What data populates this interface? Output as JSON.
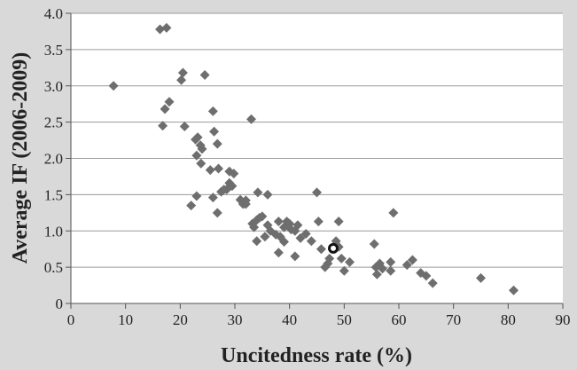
{
  "chart_data": {
    "type": "scatter",
    "title": "",
    "xlabel": "Uncitedness rate (%)",
    "ylabel": "Average IF (2006-2009)",
    "xlim": [
      0,
      90
    ],
    "ylim": [
      0,
      4.0
    ],
    "x_ticks": [
      "0",
      "10",
      "20",
      "30",
      "40",
      "50",
      "60",
      "70",
      "80",
      "90"
    ],
    "y_ticks": [
      "0",
      "0.5",
      "1.0",
      "1.5",
      "2.0",
      "2.5",
      "3.0",
      "3.5",
      "4.0"
    ],
    "grid": "horizontal",
    "series": [
      {
        "marker": "diamond",
        "color": "#6e6e6e",
        "points": [
          [
            7.8,
            3.0
          ],
          [
            16.3,
            3.78
          ],
          [
            17.5,
            3.8
          ],
          [
            17.2,
            2.68
          ],
          [
            16.8,
            2.45
          ],
          [
            18.0,
            2.78
          ],
          [
            20.5,
            3.18
          ],
          [
            20.2,
            3.08
          ],
          [
            20.8,
            2.44
          ],
          [
            24.5,
            3.15
          ],
          [
            26.0,
            2.65
          ],
          [
            22.8,
            2.26
          ],
          [
            23.2,
            2.29
          ],
          [
            23.7,
            2.18
          ],
          [
            24.0,
            2.13
          ],
          [
            23.0,
            2.04
          ],
          [
            23.8,
            1.93
          ],
          [
            26.2,
            2.37
          ],
          [
            26.8,
            2.2
          ],
          [
            25.5,
            1.84
          ],
          [
            27.0,
            1.86
          ],
          [
            29.0,
            1.82
          ],
          [
            29.8,
            1.79
          ],
          [
            22.0,
            1.35
          ],
          [
            23.0,
            1.48
          ],
          [
            26.0,
            1.46
          ],
          [
            27.5,
            1.54
          ],
          [
            26.8,
            1.25
          ],
          [
            28.5,
            1.57
          ],
          [
            29.0,
            1.66
          ],
          [
            29.5,
            1.62
          ],
          [
            28.0,
            1.57
          ],
          [
            31.0,
            1.43
          ],
          [
            31.5,
            1.37
          ],
          [
            32.0,
            1.37
          ],
          [
            32.0,
            1.42
          ],
          [
            33.0,
            2.54
          ],
          [
            33.2,
            1.1
          ],
          [
            34.0,
            1.15
          ],
          [
            34.5,
            1.18
          ],
          [
            35.0,
            1.2
          ],
          [
            34.2,
            1.53
          ],
          [
            36.0,
            1.5
          ],
          [
            34.0,
            0.86
          ],
          [
            35.5,
            0.92
          ],
          [
            36.5,
            1.0
          ],
          [
            33.5,
            1.05
          ],
          [
            36.0,
            1.08
          ],
          [
            37.5,
            0.95
          ],
          [
            38.0,
            1.13
          ],
          [
            38.3,
            0.92
          ],
          [
            39.0,
            1.05
          ],
          [
            39.5,
            1.13
          ],
          [
            40.0,
            1.1
          ],
          [
            38.0,
            0.7
          ],
          [
            39.0,
            0.85
          ],
          [
            40.3,
            1.02
          ],
          [
            41.0,
            1.0
          ],
          [
            41.5,
            1.08
          ],
          [
            42.0,
            0.9
          ],
          [
            41.0,
            0.65
          ],
          [
            43.0,
            0.96
          ],
          [
            44.0,
            0.86
          ],
          [
            45.0,
            1.53
          ],
          [
            45.3,
            1.13
          ],
          [
            45.8,
            0.75
          ],
          [
            46.5,
            0.5
          ],
          [
            47.0,
            0.55
          ],
          [
            47.3,
            0.62
          ],
          [
            48.5,
            0.86
          ],
          [
            49.0,
            0.78
          ],
          [
            49.0,
            1.13
          ],
          [
            49.5,
            0.62
          ],
          [
            50.0,
            0.45
          ],
          [
            51.0,
            0.57
          ],
          [
            55.5,
            0.82
          ],
          [
            55.8,
            0.5
          ],
          [
            56.0,
            0.4
          ],
          [
            56.5,
            0.55
          ],
          [
            57.0,
            0.48
          ],
          [
            58.5,
            0.57
          ],
          [
            58.5,
            0.45
          ],
          [
            59.0,
            1.25
          ],
          [
            61.5,
            0.53
          ],
          [
            62.5,
            0.6
          ],
          [
            64.0,
            0.42
          ],
          [
            65.0,
            0.38
          ],
          [
            66.2,
            0.28
          ],
          [
            75.0,
            0.35
          ],
          [
            81.0,
            0.18
          ]
        ]
      },
      {
        "marker": "circle-open",
        "color": "#111111",
        "points": [
          [
            48.0,
            0.76
          ]
        ]
      }
    ]
  }
}
